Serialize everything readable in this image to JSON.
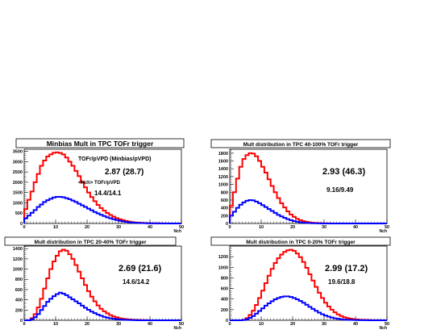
{
  "chart_data": [
    {
      "type": "histogram",
      "title": "Minbias Mult in TPC TOFr trigger",
      "xlabel": "Nch",
      "xlim": [
        0,
        50
      ],
      "ylim": [
        0,
        3600
      ],
      "x_ticks": [
        "0",
        "10",
        "20",
        "30",
        "40",
        "50"
      ],
      "y_ticks": [
        "0",
        "500",
        "1000",
        "1500",
        "2000",
        "2500",
        "3000",
        "3500"
      ],
      "annotations": [
        "TOFr/pVPD (Minbias/pVPD)",
        "2.87 (28.7)",
        "<Nch> TOFr/pVPD",
        "14.4/14.1"
      ],
      "series": [
        {
          "color": "#ff0000",
          "values": [
            700,
            1150,
            1550,
            2000,
            2400,
            2800,
            3050,
            3250,
            3350,
            3430,
            3450,
            3420,
            3350,
            3200,
            3000,
            2800,
            2550,
            2300,
            2000,
            1750,
            1500,
            1280,
            1080,
            900,
            750,
            620,
            510,
            410,
            330,
            260,
            200,
            160,
            120,
            90,
            70,
            50,
            40,
            30,
            22,
            16,
            12,
            9,
            7,
            5,
            4,
            3,
            2,
            2,
            1,
            1
          ]
        },
        {
          "color": "#0000ff",
          "values": [
            250,
            380,
            520,
            650,
            800,
            920,
            1040,
            1130,
            1200,
            1260,
            1290,
            1290,
            1270,
            1230,
            1180,
            1110,
            1040,
            960,
            880,
            800,
            720,
            640,
            560,
            490,
            420,
            360,
            300,
            250,
            205,
            165,
            130,
            100,
            80,
            60,
            45,
            34,
            25,
            18,
            13,
            10,
            7,
            5,
            4,
            3,
            2,
            2,
            1,
            1,
            0,
            0
          ]
        }
      ]
    },
    {
      "type": "histogram",
      "title": "Mult distribution in TPC 40-100% TOFr trigger",
      "xlabel": "Nch",
      "xlim": [
        0,
        50
      ],
      "ylim": [
        0,
        1900
      ],
      "x_ticks": [
        "0",
        "10",
        "20",
        "30",
        "40",
        "50"
      ],
      "y_ticks": [
        "0",
        "200",
        "400",
        "600",
        "800",
        "1000",
        "1200",
        "1400",
        "1600",
        "1800"
      ],
      "annotations": [
        "2.93 (46.3)",
        "9.16/9.49"
      ],
      "series": [
        {
          "color": "#ff0000",
          "values": [
            450,
            800,
            1150,
            1450,
            1650,
            1750,
            1800,
            1790,
            1720,
            1600,
            1450,
            1300,
            1130,
            960,
            800,
            650,
            520,
            410,
            310,
            230,
            170,
            120,
            85,
            60,
            40,
            28,
            18,
            12,
            8,
            5,
            3,
            2,
            1,
            1,
            0,
            0,
            0,
            0,
            0,
            0,
            0,
            0,
            0,
            0,
            0,
            0,
            0,
            0,
            0,
            0
          ]
        },
        {
          "color": "#0000ff",
          "values": [
            200,
            300,
            400,
            480,
            540,
            580,
            600,
            590,
            560,
            520,
            470,
            420,
            370,
            320,
            270,
            220,
            180,
            145,
            112,
            85,
            62,
            45,
            32,
            22,
            15,
            10,
            6,
            4,
            2,
            1,
            1,
            0,
            0,
            0,
            0,
            0,
            0,
            0,
            0,
            0,
            0,
            0,
            0,
            0,
            0,
            0,
            0,
            0,
            0,
            0
          ]
        }
      ]
    },
    {
      "type": "histogram",
      "title": "Mult distribution in TPC 20-40% TOFr trigger",
      "xlabel": "Nch",
      "xlim": [
        0,
        50
      ],
      "ylim": [
        0,
        1450
      ],
      "x_ticks": [
        "0",
        "10",
        "20",
        "30",
        "40",
        "50"
      ],
      "y_ticks": [
        "0",
        "200",
        "400",
        "600",
        "800",
        "1000",
        "1200",
        "1400"
      ],
      "annotations": [
        "2.69 (21.6)",
        "14.6/14.2"
      ],
      "series": [
        {
          "color": "#ff0000",
          "values": [
            0,
            0,
            40,
            120,
            250,
            420,
            620,
            820,
            1000,
            1150,
            1260,
            1350,
            1380,
            1360,
            1290,
            1200,
            1080,
            950,
            820,
            690,
            570,
            460,
            370,
            290,
            225,
            175,
            135,
            100,
            75,
            56,
            40,
            29,
            21,
            15,
            10,
            7,
            5,
            3,
            2,
            1,
            1,
            0,
            0,
            0,
            0,
            0,
            0,
            0,
            0,
            0
          ]
        },
        {
          "color": "#0000ff",
          "values": [
            0,
            0,
            20,
            60,
            120,
            200,
            280,
            360,
            420,
            470,
            510,
            540,
            520,
            490,
            450,
            410,
            370,
            330,
            285,
            245,
            205,
            170,
            140,
            112,
            88,
            68,
            52,
            40,
            30,
            22,
            16,
            11,
            8,
            5,
            3,
            2,
            1,
            1,
            0,
            0,
            0,
            0,
            0,
            0,
            0,
            0,
            0,
            0,
            0,
            0
          ]
        }
      ]
    },
    {
      "type": "histogram",
      "title": "Mult distribution in TPC 0-20% TOFr trigger",
      "xlabel": "Nch",
      "xlim": [
        0,
        50
      ],
      "ylim": [
        0,
        1400
      ],
      "x_ticks": [
        "0",
        "10",
        "20",
        "30",
        "40",
        "50"
      ],
      "y_ticks": [
        "0",
        "200",
        "400",
        "600",
        "800",
        "1000",
        "1200"
      ],
      "annotations": [
        "2.99 (17.2)",
        "19.6/18.8"
      ],
      "series": [
        {
          "color": "#ff0000",
          "values": [
            0,
            0,
            0,
            0,
            10,
            40,
            100,
            180,
            290,
            420,
            560,
            700,
            840,
            970,
            1080,
            1170,
            1240,
            1290,
            1320,
            1330,
            1310,
            1260,
            1190,
            1100,
            990,
            870,
            750,
            630,
            520,
            420,
            330,
            260,
            200,
            150,
            110,
            80,
            58,
            42,
            30,
            21,
            15,
            10,
            7,
            5,
            3,
            2,
            1,
            1,
            0,
            0
          ]
        },
        {
          "color": "#0000ff",
          "values": [
            0,
            0,
            0,
            0,
            5,
            20,
            45,
            80,
            125,
            175,
            225,
            275,
            320,
            360,
            395,
            420,
            440,
            450,
            450,
            440,
            420,
            395,
            365,
            330,
            292,
            253,
            215,
            178,
            145,
            115,
            90,
            69,
            52,
            38,
            28,
            20,
            14,
            10,
            7,
            5,
            3,
            2,
            1,
            1,
            0,
            0,
            0,
            0,
            0,
            0
          ]
        }
      ]
    }
  ]
}
